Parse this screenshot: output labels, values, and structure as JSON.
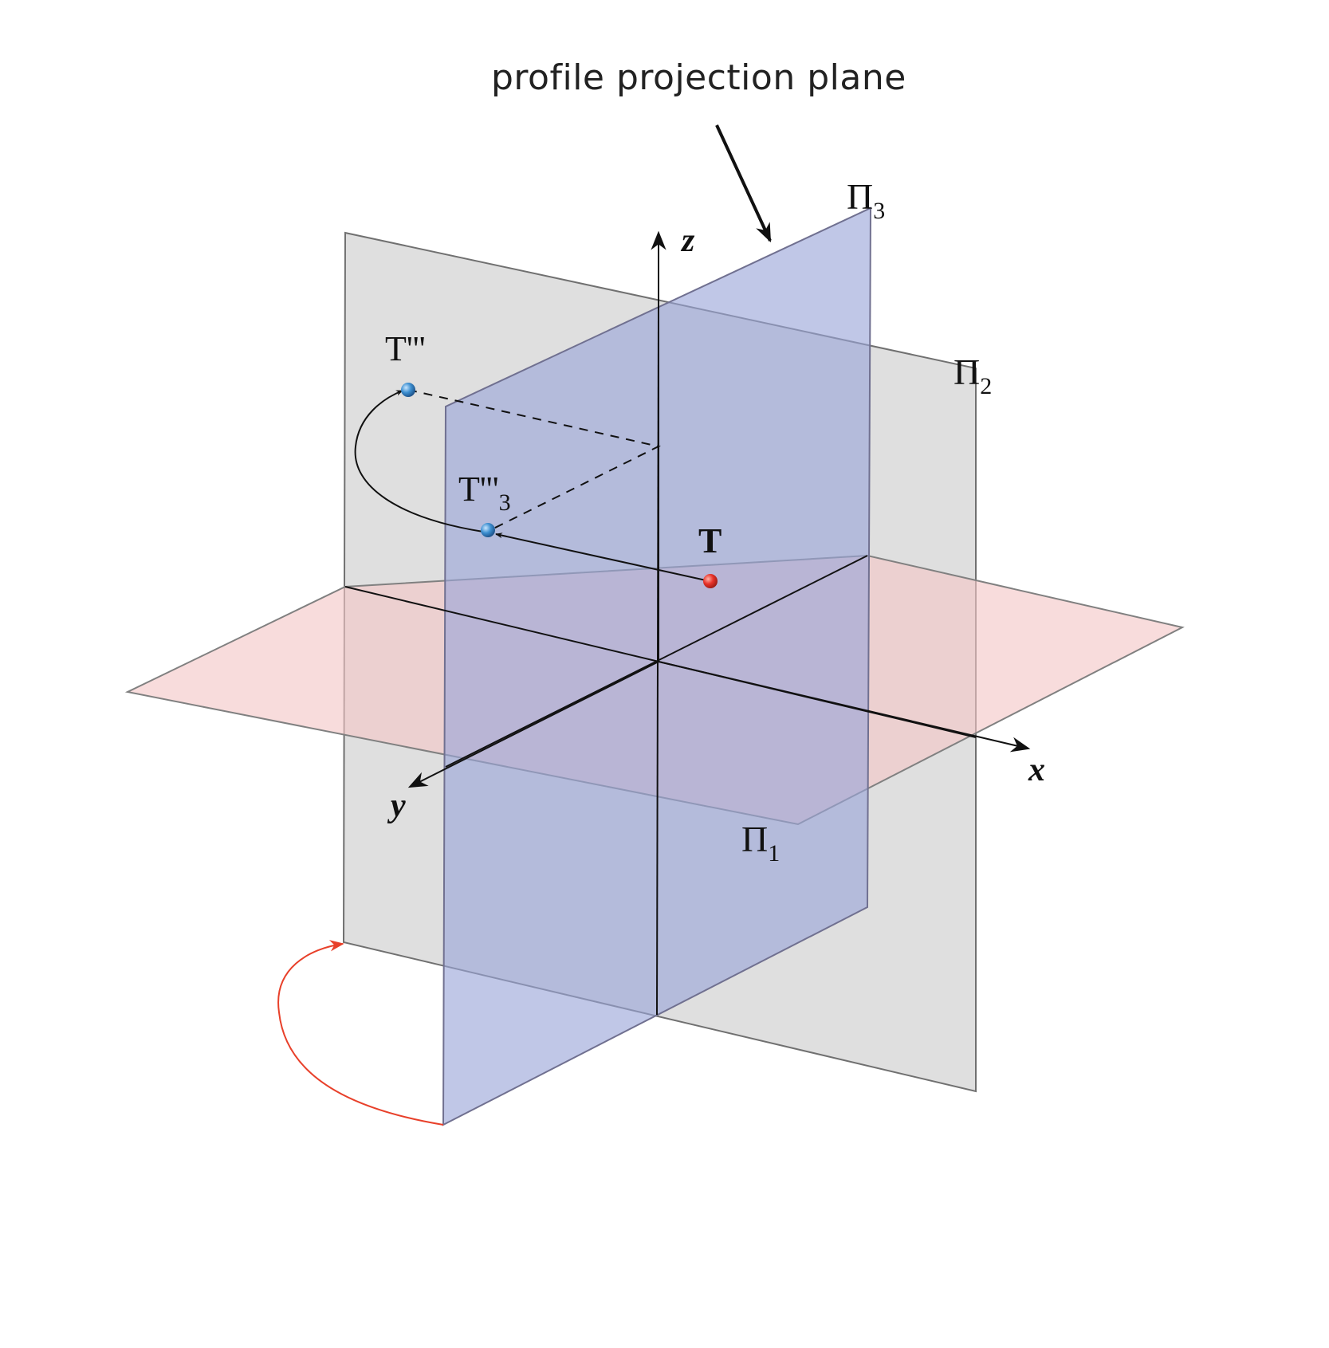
{
  "callout": {
    "text": "profile projection plane"
  },
  "axes": {
    "x": "x",
    "y": "y",
    "z": "z"
  },
  "planes": {
    "pi1": {
      "symbol": "Π",
      "index": "1",
      "color": "#f4c6c6"
    },
    "pi2": {
      "symbol": "Π",
      "index": "2",
      "color": "#d3d3d3"
    },
    "pi3": {
      "symbol": "Π",
      "index": "3",
      "color": "#9aa4d8"
    }
  },
  "points": {
    "T": {
      "label": "T",
      "color": "#e8332a"
    },
    "T3_rotated": {
      "label": "T'''",
      "color": "#3d8fd0"
    },
    "T3": {
      "label": "T'''",
      "index": "3",
      "color": "#3d8fd0"
    }
  },
  "rotation_arrow_color": "#e8402a"
}
